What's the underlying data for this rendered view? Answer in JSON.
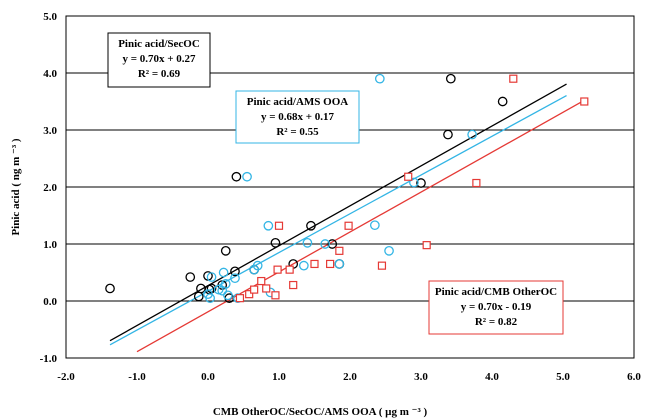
{
  "chart_data": {
    "type": "scatter",
    "xlabel": "CMB OtherOC/SecOC/AMS  OOA ( µg m ⁻³ )",
    "ylabel": "Pinic acid ( ng m ⁻³ )",
    "xlim": [
      -2.0,
      6.0
    ],
    "ylim": [
      -1.0,
      5.0
    ],
    "x_ticks": [
      "-2.0",
      "-1.0",
      "0.0",
      "1.0",
      "2.0",
      "3.0",
      "4.0",
      "5.0",
      "6.0"
    ],
    "y_ticks": [
      "-1.0",
      "0.0",
      "1.0",
      "2.0",
      "3.0",
      "4.0",
      "5.0"
    ],
    "grid": "horizontal",
    "series": [
      {
        "color": "#000000",
        "marker": "circle",
        "points": [
          [
            -1.38,
            0.22
          ],
          [
            -0.25,
            0.42
          ],
          [
            -0.13,
            0.08
          ],
          [
            -0.1,
            0.22
          ],
          [
            0.0,
            0.44
          ],
          [
            0.02,
            0.2
          ],
          [
            0.05,
            0.22
          ],
          [
            0.2,
            0.28
          ],
          [
            0.25,
            0.88
          ],
          [
            0.3,
            0.05
          ],
          [
            0.38,
            0.52
          ],
          [
            0.4,
            2.18
          ],
          [
            0.65,
            0.55
          ],
          [
            0.95,
            1.02
          ],
          [
            1.2,
            0.65
          ],
          [
            1.45,
            1.32
          ],
          [
            1.75,
            1.0
          ],
          [
            1.85,
            0.65
          ],
          [
            3.0,
            2.07
          ],
          [
            3.38,
            2.92
          ],
          [
            3.42,
            3.9
          ],
          [
            4.15,
            3.5
          ]
        ],
        "fit_line": {
          "slope": 0.7,
          "intercept": 0.27,
          "x_range": [
            -1.38,
            5.05
          ]
        }
      },
      {
        "color": "#33b5e5",
        "marker": "circle",
        "points": [
          [
            0.0,
            0.12
          ],
          [
            0.03,
            0.05
          ],
          [
            0.05,
            0.42
          ],
          [
            0.15,
            0.2
          ],
          [
            0.2,
            0.18
          ],
          [
            0.22,
            0.5
          ],
          [
            0.25,
            0.3
          ],
          [
            0.28,
            0.1
          ],
          [
            0.38,
            0.4
          ],
          [
            0.42,
            0.05
          ],
          [
            0.55,
            2.18
          ],
          [
            0.65,
            0.55
          ],
          [
            0.7,
            0.62
          ],
          [
            0.85,
            1.32
          ],
          [
            0.88,
            0.15
          ],
          [
            1.35,
            0.62
          ],
          [
            1.4,
            1.02
          ],
          [
            1.65,
            1.0
          ],
          [
            1.85,
            0.65
          ],
          [
            2.35,
            1.33
          ],
          [
            2.42,
            3.9
          ],
          [
            2.55,
            0.88
          ],
          [
            2.9,
            2.08
          ],
          [
            3.72,
            2.92
          ]
        ],
        "fit_line": {
          "slope": 0.68,
          "intercept": 0.17,
          "x_range": [
            -1.38,
            5.05
          ]
        }
      },
      {
        "color": "#e53935",
        "marker": "square",
        "points": [
          [
            0.45,
            0.05
          ],
          [
            0.58,
            0.12
          ],
          [
            0.65,
            0.2
          ],
          [
            0.75,
            0.35
          ],
          [
            0.82,
            0.22
          ],
          [
            0.95,
            0.1
          ],
          [
            0.98,
            0.55
          ],
          [
            1.0,
            1.32
          ],
          [
            1.15,
            0.55
          ],
          [
            1.2,
            0.28
          ],
          [
            1.5,
            0.65
          ],
          [
            1.72,
            0.65
          ],
          [
            1.85,
            0.88
          ],
          [
            1.98,
            1.32
          ],
          [
            2.45,
            0.62
          ],
          [
            2.82,
            2.18
          ],
          [
            3.08,
            0.98
          ],
          [
            3.78,
            2.07
          ],
          [
            4.3,
            3.9
          ],
          [
            5.3,
            3.5
          ]
        ],
        "fit_line": {
          "slope": 0.7,
          "intercept": -0.19,
          "x_range": [
            -1.0,
            5.3
          ]
        }
      }
    ],
    "annotations": [
      {
        "lines": [
          "Pinic acid/SecOC",
          "y = 0.70x + 0.27",
          "R² = 0.69"
        ],
        "border": "#000000"
      },
      {
        "lines": [
          "Pinic acid/AMS OOA",
          "y = 0.68x + 0.17",
          "R² = 0.55"
        ],
        "border": "#33b5e5"
      },
      {
        "lines": [
          "Pinic acid/CMB OtherOC",
          "y = 0.70x - 0.19",
          "R² = 0.82"
        ],
        "border": "#e53935"
      }
    ]
  }
}
